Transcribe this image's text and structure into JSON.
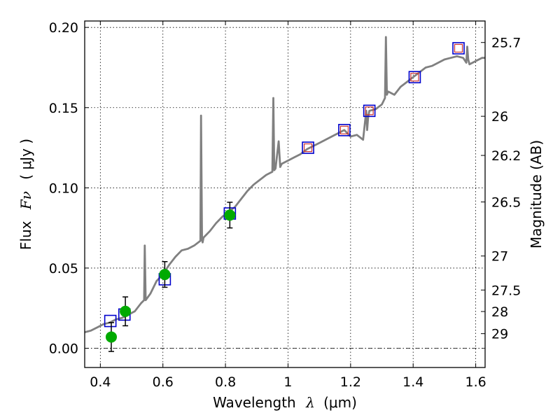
{
  "chart_data": {
    "type": "scatter",
    "title": "",
    "xlabel_prefix": "Wavelength",
    "xlabel_symbol": "λ",
    "xlabel_unit": "(μm)",
    "ylabel_prefix": "Flux",
    "ylabel_symbol": "Fν",
    "ylabel_unit": "( μJy )",
    "y2label": "Magnitude (AB)",
    "xlim": [
      0.35,
      1.63
    ],
    "ylim": [
      -0.012,
      0.204
    ],
    "grid": true,
    "xticks": [
      0.4,
      0.6,
      0.8,
      1.0,
      1.2,
      1.4,
      1.6
    ],
    "xtick_labels": [
      "0.4",
      "0.6",
      "0.8",
      "1",
      "1.2",
      "1.4",
      "1.6"
    ],
    "yticks": [
      0.0,
      0.05,
      0.1,
      0.15,
      0.2
    ],
    "ytick_labels": [
      "0.00",
      "0.05",
      "0.10",
      "0.15",
      "0.20"
    ],
    "magnitude_ticks": [
      {
        "label": "25.7",
        "flux": 0.1906
      },
      {
        "label": "26",
        "flux": 0.1446
      },
      {
        "label": "26.2",
        "flux": 0.1202
      },
      {
        "label": "26.5",
        "flux": 0.0912
      },
      {
        "label": "27",
        "flux": 0.0575
      },
      {
        "label": "27.5",
        "flux": 0.0363
      },
      {
        "label": "28",
        "flux": 0.0229
      },
      {
        "label": "29",
        "flux": 0.0091
      }
    ],
    "series": [
      {
        "name": "Model spectrum",
        "kind": "line",
        "color": "#808080",
        "x": [
          0.35,
          0.37,
          0.39,
          0.41,
          0.43,
          0.45,
          0.47,
          0.49,
          0.51,
          0.53,
          0.54,
          0.542,
          0.545,
          0.56,
          0.58,
          0.6,
          0.62,
          0.64,
          0.66,
          0.68,
          0.7,
          0.72,
          0.722,
          0.725,
          0.727,
          0.73,
          0.75,
          0.77,
          0.79,
          0.81,
          0.83,
          0.85,
          0.87,
          0.89,
          0.91,
          0.93,
          0.95,
          0.953,
          0.956,
          0.96,
          0.97,
          0.975,
          0.98,
          1.0,
          1.02,
          1.04,
          1.06,
          1.08,
          1.1,
          1.12,
          1.14,
          1.16,
          1.18,
          1.2,
          1.22,
          1.24,
          1.25,
          1.253,
          1.256,
          1.26,
          1.28,
          1.3,
          1.31,
          1.313,
          1.316,
          1.32,
          1.34,
          1.36,
          1.38,
          1.4,
          1.42,
          1.44,
          1.46,
          1.48,
          1.5,
          1.52,
          1.54,
          1.56,
          1.57,
          1.573,
          1.576,
          1.58,
          1.6,
          1.62,
          1.63
        ],
        "y": [
          0.01,
          0.011,
          0.013,
          0.015,
          0.016,
          0.018,
          0.019,
          0.021,
          0.023,
          0.028,
          0.03,
          0.064,
          0.03,
          0.034,
          0.042,
          0.046,
          0.052,
          0.057,
          0.061,
          0.062,
          0.064,
          0.067,
          0.145,
          0.068,
          0.066,
          0.069,
          0.073,
          0.078,
          0.082,
          0.085,
          0.088,
          0.093,
          0.098,
          0.102,
          0.105,
          0.108,
          0.11,
          0.156,
          0.111,
          0.112,
          0.129,
          0.113,
          0.115,
          0.117,
          0.119,
          0.121,
          0.124,
          0.126,
          0.128,
          0.13,
          0.132,
          0.134,
          0.136,
          0.132,
          0.133,
          0.13,
          0.148,
          0.136,
          0.144,
          0.148,
          0.149,
          0.152,
          0.156,
          0.194,
          0.158,
          0.16,
          0.158,
          0.163,
          0.166,
          0.169,
          0.172,
          0.175,
          0.176,
          0.178,
          0.18,
          0.181,
          0.182,
          0.181,
          0.178,
          0.188,
          0.18,
          0.177,
          0.179,
          0.181,
          0.181
        ]
      },
      {
        "name": "Model photometry (blue squares)",
        "kind": "marker",
        "marker": "square",
        "color": "#0000cc",
        "x": [
          0.432,
          0.477,
          0.606,
          0.814,
          1.064,
          1.18,
          1.26,
          1.405,
          1.545
        ],
        "y": [
          0.017,
          0.021,
          0.043,
          0.084,
          0.125,
          0.136,
          0.148,
          0.169,
          0.187
        ]
      },
      {
        "name": "Observed flux (red squares)",
        "kind": "marker",
        "marker": "small-square",
        "color": "#cc3333",
        "x": [
          1.064,
          1.18,
          1.26,
          1.405,
          1.545
        ],
        "y": [
          0.125,
          0.136,
          0.148,
          0.169,
          0.187
        ]
      },
      {
        "name": "Observed flux (green circles)",
        "kind": "marker",
        "marker": "circle",
        "color": "#00aa00",
        "x": [
          0.435,
          0.48,
          0.606,
          0.814
        ],
        "y": [
          0.007,
          0.023,
          0.046,
          0.083
        ],
        "yerr": [
          0.009,
          0.009,
          0.008,
          0.008
        ]
      }
    ],
    "colors": {
      "spectrum": "#808080",
      "model_square": "#0000cc",
      "observed_square": "#cc3333",
      "observed_circle": "#00aa00",
      "grid": "#000000"
    }
  }
}
